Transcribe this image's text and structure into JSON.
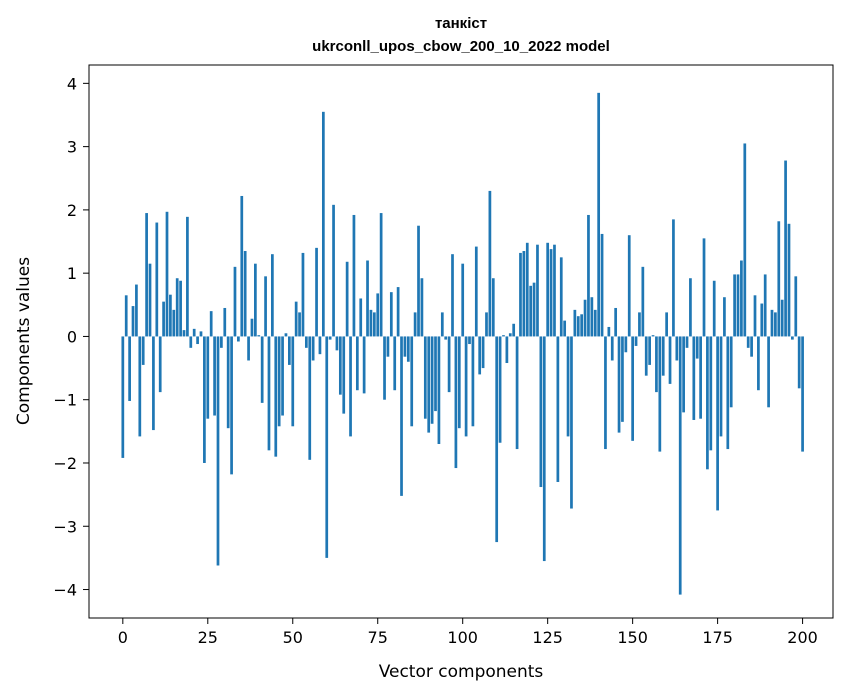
{
  "chart_data": {
    "type": "bar",
    "title": "танкіст",
    "subtitle": "ukrconll_upos_cbow_200_10_2022 model",
    "xlabel": "Vector components",
    "ylabel": "Components values",
    "xlim": [
      -9.95,
      208.95
    ],
    "ylim": [
      -4.45,
      4.29
    ],
    "xticks": [
      0,
      25,
      50,
      75,
      100,
      125,
      150,
      175,
      200
    ],
    "yticks": [
      -4,
      -3,
      -2,
      -1,
      0,
      1,
      2,
      3,
      4
    ],
    "bar_color": "#1f77b4",
    "grid": false,
    "series": [
      {
        "values": [
          -1.92,
          0.65,
          -1.02,
          0.48,
          0.82,
          -1.58,
          -0.45,
          1.95,
          1.15,
          -1.48,
          1.8,
          -0.88,
          0.55,
          1.97,
          0.66,
          0.42,
          0.92,
          0.88,
          0.1,
          1.89,
          -0.18,
          0.12,
          -0.12,
          0.08,
          -2.0,
          -1.3,
          0.4,
          -1.25,
          -3.62,
          -0.18,
          0.45,
          -1.45,
          -2.18,
          1.1,
          -0.08,
          2.22,
          1.35,
          -0.38,
          0.28,
          1.15,
          0.02,
          -1.05,
          0.95,
          -1.8,
          1.3,
          -1.9,
          -1.42,
          -1.25,
          0.05,
          -0.45,
          -1.42,
          0.55,
          0.38,
          1.32,
          -0.18,
          -1.95,
          -0.38,
          1.4,
          -0.28,
          3.55,
          -3.5,
          -0.05,
          2.08,
          -0.22,
          -0.92,
          -1.22,
          1.18,
          -1.58,
          1.92,
          -0.85,
          0.6,
          -0.9,
          1.2,
          0.42,
          0.38,
          0.68,
          1.95,
          -1.0,
          -0.32,
          0.7,
          -0.85,
          0.78,
          -2.52,
          -0.32,
          -0.4,
          -1.42,
          0.38,
          1.75,
          0.92,
          -1.3,
          -1.52,
          -1.38,
          -1.18,
          -1.7,
          0.38,
          -0.05,
          -0.88,
          1.3,
          -2.08,
          -1.45,
          1.15,
          -1.58,
          -0.12,
          -1.42,
          1.42,
          -0.6,
          -0.5,
          0.38,
          2.3,
          0.92,
          -3.25,
          -1.68,
          0.02,
          -0.42,
          0.05,
          0.2,
          -1.78,
          1.32,
          1.35,
          1.48,
          0.8,
          0.85,
          1.45,
          -2.38,
          -3.55,
          1.48,
          1.38,
          1.45,
          -2.3,
          1.25,
          0.25,
          -1.58,
          -2.72,
          0.42,
          0.32,
          0.35,
          0.58,
          1.92,
          0.62,
          0.42,
          3.85,
          1.62,
          -1.78,
          0.15,
          -0.38,
          0.45,
          -1.52,
          -1.35,
          -0.25,
          1.6,
          -1.65,
          -0.15,
          0.38,
          1.1,
          -0.62,
          -0.45,
          0.02,
          -0.88,
          -1.82,
          -0.62,
          0.38,
          -0.75,
          1.85,
          -0.38,
          -4.08,
          -1.2,
          -0.18,
          0.92,
          -1.32,
          -0.35,
          -1.3,
          1.55,
          -2.1,
          -1.8,
          0.88,
          -2.75,
          -1.58,
          0.62,
          -1.78,
          -1.12,
          0.98,
          0.98,
          1.2,
          3.05,
          -0.18,
          -0.32,
          0.65,
          -0.85,
          0.52,
          0.98,
          -1.12,
          0.42,
          0.38,
          1.82,
          0.58,
          2.78,
          1.78,
          -0.05,
          0.95,
          -0.82,
          -1.82
        ]
      }
    ]
  }
}
